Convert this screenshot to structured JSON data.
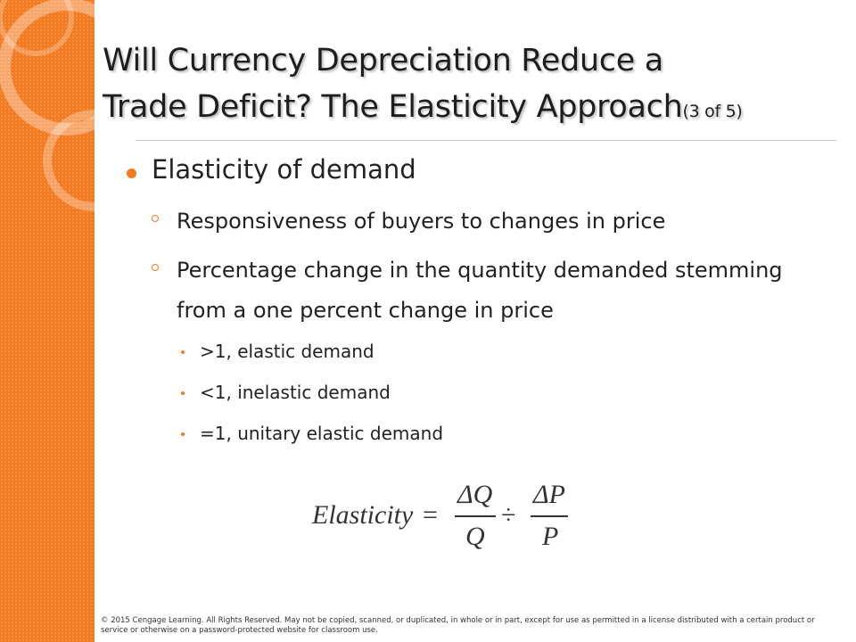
{
  "title_lines": [
    "Will Currency Depreciation Reduce a",
    "Trade Deficit? The Elasticity Approach"
  ],
  "title_suffix": "(3 of 5)",
  "bullets": [
    {
      "text": "Elasticity of demand",
      "children": [
        {
          "text": "Responsiveness of buyers to changes in price"
        },
        {
          "text": "Percentage change in the quantity demanded stemming from a one percent change in price",
          "children": [
            {
              "text": ">1, elastic demand"
            },
            {
              "text": "<1, inelastic demand"
            },
            {
              "text": "=1, unitary elastic demand"
            }
          ]
        }
      ]
    }
  ],
  "formula": {
    "lhs": "Elasticity",
    "equals": "=",
    "numerator_1": "ΔQ",
    "denominator_1": "Q",
    "operator": "÷",
    "numerator_2": "ΔP",
    "denominator_2": "P"
  },
  "footer": "© 2015 Cengage Learning. All Rights Reserved. May not be copied, scanned, or duplicated, in whole or in part, except for use as permitted in a license distributed with a certain product or service or otherwise on a password-protected website for classroom use."
}
